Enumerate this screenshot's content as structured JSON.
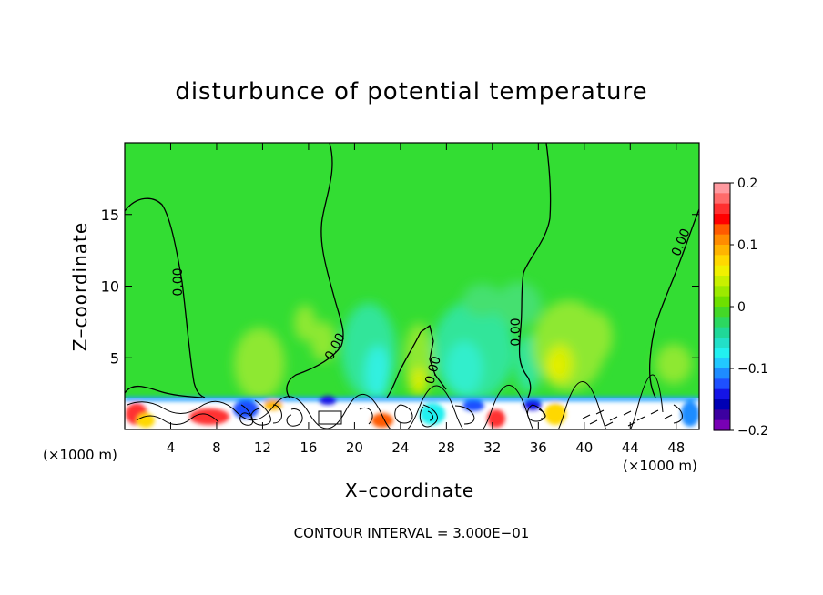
{
  "chart_data": {
    "type": "heatmap",
    "title": "disturbunce of potential temperature",
    "xlabel": "X–coordinate",
    "ylabel": "Z–coordinate",
    "x_unit_left": "(×1000 m)",
    "x_unit_right": "(×1000 m)",
    "x_ticks": [
      4,
      8,
      12,
      16,
      20,
      24,
      28,
      32,
      36,
      40,
      44,
      48
    ],
    "y_ticks": [
      5,
      10,
      15
    ],
    "xlim": [
      0,
      50
    ],
    "ylim": [
      0,
      20
    ],
    "colorbar": {
      "ticks": [
        {
          "value": 0.2,
          "label": "0.2"
        },
        {
          "value": 0.1,
          "label": "0.1"
        },
        {
          "value": 0.0,
          "label": "0"
        },
        {
          "value": -0.1,
          "label": "−0.1"
        },
        {
          "value": -0.2,
          "label": "−0.2"
        }
      ],
      "range": [
        -0.2,
        0.2
      ],
      "colors": [
        "#ff9aa0",
        "#ff6b6b",
        "#ff3030",
        "#ff0000",
        "#ff5a00",
        "#ff8c00",
        "#ffb400",
        "#ffd800",
        "#f0f000",
        "#c8f000",
        "#9cea00",
        "#6ee000",
        "#44d828",
        "#2cd860",
        "#20d898",
        "#22e0c8",
        "#22f0f0",
        "#22c8ff",
        "#1e8cff",
        "#1e50ff",
        "#1414e6",
        "#0000b4",
        "#3c00a0",
        "#7800b4"
      ]
    },
    "contour_label": "0.00",
    "footer": "CONTOUR INTERVAL = 3.000E−01"
  },
  "colors": {
    "background_green": "#33dd33",
    "light_green": "#80ee33",
    "yellow": "#d8ee00",
    "cyan": "#33eedd",
    "teal": "#33e088"
  }
}
